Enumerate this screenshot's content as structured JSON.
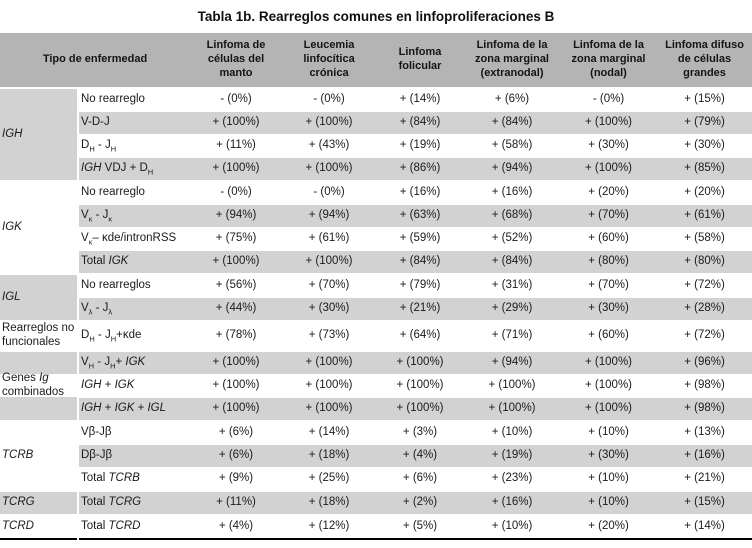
{
  "title": "Tabla 1b. Rearreglos comunes en linfoproliferaciones B",
  "colors": {
    "header_bg": "#b4b4b4",
    "stripe_bg": "#d2d2d2",
    "bottom_border": "#000000",
    "text": "#1b1b1b"
  },
  "table": {
    "header": {
      "disease_col": "Tipo de enfermedad",
      "columns": [
        "Linfoma de células del manto",
        "Leucemia linfocítica crónica",
        "Linfoma folicular",
        "Linfoma de la zona marginal (extranodal)",
        "Linfoma de la zona marginal (nodal)",
        "Linfoma difuso de células grandes"
      ]
    },
    "groups": [
      {
        "label": "*IGH*",
        "shade": "gray",
        "rows": [
          {
            "label": "No rearreglo",
            "values": [
              "- (0%)",
              "- (0%)",
              "+ (14%)",
              "+ (6%)",
              "- (0%)",
              "+ (15%)"
            ]
          },
          {
            "label": "V-D-J",
            "values": [
              "+ (100%)",
              "+ (100%)",
              "+ (84%)",
              "+ (84%)",
              "+ (100%)",
              "+ (79%)"
            ]
          },
          {
            "label": "D~H~ - J~H~",
            "values": [
              "+ (11%)",
              "+ (43%)",
              "+ (19%)",
              "+ (58%)",
              "+ (30%)",
              "+ (30%)"
            ]
          },
          {
            "label": "*IGH* VDJ + D~H~",
            "values": [
              "+ (100%)",
              "+ (100%)",
              "+ (86%)",
              "+ (94%)",
              "+ (100%)",
              "+ (85%)"
            ]
          }
        ]
      },
      {
        "label": "*IGK*",
        "shade": "white",
        "rows": [
          {
            "label": "No rearreglo",
            "values": [
              "- (0%)",
              "- (0%)",
              "+ (16%)",
              "+ (16%)",
              "+ (20%)",
              "+ (20%)"
            ]
          },
          {
            "label": "V~κ~ - J~κ~",
            "values": [
              "+ (94%)",
              "+ (94%)",
              "+ (63%)",
              "+ (68%)",
              "+ (70%)",
              "+ (61%)"
            ]
          },
          {
            "label": "V~κ~– κde/intronRSS",
            "values": [
              "+ (75%)",
              "+ (61%)",
              "+ (59%)",
              "+ (52%)",
              "+ (60%)",
              "+ (58%)"
            ]
          },
          {
            "label": "Total *IGK*",
            "values": [
              "+ (100%)",
              "+ (100%)",
              "+ (84%)",
              "+ (84%)",
              "+ (80%)",
              "+ (80%)"
            ]
          }
        ]
      },
      {
        "label": "*IGL*",
        "shade": "gray",
        "rows": [
          {
            "label": "No rearreglos",
            "values": [
              "+ (56%)",
              "+ (70%)",
              "+ (79%)",
              "+ (31%)",
              "+ (70%)",
              "+ (72%)"
            ]
          },
          {
            "label": "V~λ~ - J~λ~",
            "values": [
              "+ (44%)",
              "+ (30%)",
              "+ (21%)",
              "+ (29%)",
              "+ (30%)",
              "+ (28%)"
            ]
          }
        ]
      },
      {
        "label": "Rearreglos no funcionales",
        "shade": "white",
        "rows": [
          {
            "label": "D~H~ - J~H~+κde",
            "values": [
              "+ (78%)",
              "+ (73%)",
              "+ (64%)",
              "+ (71%)",
              "+ (60%)",
              "+ (72%)"
            ]
          }
        ]
      },
      {
        "label": "Genes *Ig* combinados",
        "shade": "striped",
        "rows": [
          {
            "label": "V~H~ - J~H~+ *IGK*",
            "values": [
              "+ (100%)",
              "+ (100%)",
              "+ (100%)",
              "+ (94%)",
              "+ (100%)",
              "+ (96%)"
            ]
          },
          {
            "label": "*IGH* + *IGK*",
            "values": [
              "+ (100%)",
              "+ (100%)",
              "+ (100%)",
              "+ (100%)",
              "+ (100%)",
              "+ (98%)"
            ]
          },
          {
            "label": "*IGH* + *IGK* + *IGL*",
            "values": [
              "+ (100%)",
              "+ (100%)",
              "+ (100%)",
              "+ (100%)",
              "+ (100%)",
              "+ (98%)"
            ]
          }
        ]
      },
      {
        "label": "*TCRB*",
        "shade": "white",
        "rows": [
          {
            "label": "Vβ-Jβ",
            "values": [
              "+ (6%)",
              "+ (14%)",
              "+ (3%)",
              "+ (10%)",
              "+ (10%)",
              "+ (13%)"
            ]
          },
          {
            "label": "Dβ-Jβ",
            "values": [
              "+ (6%)",
              "+ (18%)",
              "+ (4%)",
              "+ (19%)",
              "+ (30%)",
              "+ (16%)"
            ]
          },
          {
            "label": "Total *TCRB*",
            "values": [
              "+ (9%)",
              "+ (25%)",
              "+ (6%)",
              "+ (23%)",
              "+ (10%)",
              "+ (21%)"
            ]
          }
        ]
      },
      {
        "label": "*TCRG*",
        "shade": "gray",
        "rows": [
          {
            "label": "Total *TCRG*",
            "values": [
              "+ (11%)",
              "+ (18%)",
              "+ (2%)",
              "+ (16%)",
              "+ (10%)",
              "+ (15%)"
            ]
          }
        ]
      },
      {
        "label": "*TCRD*",
        "shade": "white",
        "rows": [
          {
            "label": "Total *TCRD*",
            "values": [
              "+ (4%)",
              "+ (12%)",
              "+ (5%)",
              "+ (10%)",
              "+ (20%)",
              "+ (14%)"
            ]
          }
        ]
      }
    ]
  }
}
